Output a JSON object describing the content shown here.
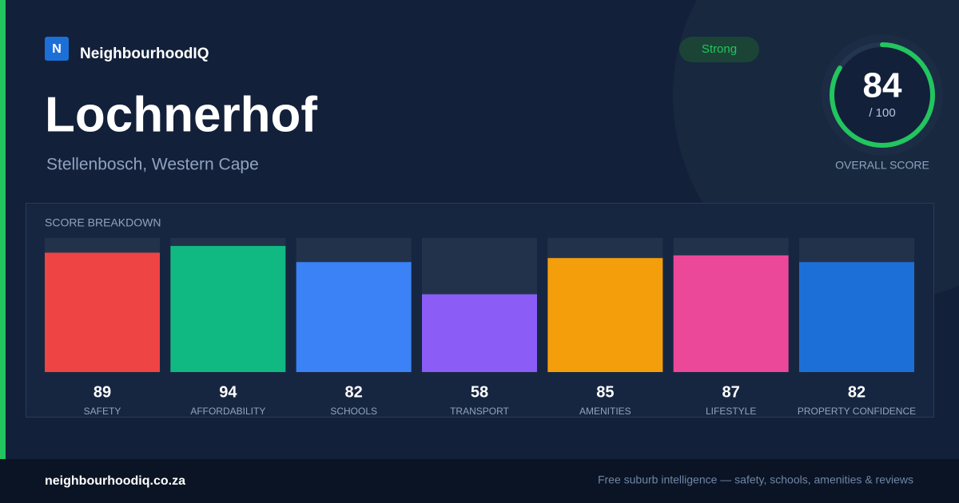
{
  "brand": {
    "logo": "N",
    "name": "NeighbourhoodIQ"
  },
  "header": {
    "title": "Lochnerhof",
    "subtitle": "Stellenbosch, Western Cape",
    "badge": "Strong"
  },
  "overall": {
    "score": 84,
    "max": {
      "value": 100,
      "label": "/ 100"
    },
    "label": "OVERALL SCORE"
  },
  "chart_data": {
    "type": "bar",
    "title": "SCORE BREAKDOWN",
    "categories": [
      "SAFETY",
      "AFFORDABILITY",
      "SCHOOLS",
      "TRANSPORT",
      "AMENITIES",
      "LIFESTYLE",
      "PROPERTY CONFIDENCE"
    ],
    "values": [
      89,
      94,
      82,
      58,
      85,
      87,
      82
    ],
    "colors": [
      "#ef4444",
      "#10b981",
      "#3b82f6",
      "#8b5cf6",
      "#f59e0b",
      "#ec4899",
      "#1d6fd8"
    ],
    "ylim": [
      0,
      100
    ]
  },
  "footer": {
    "url": "neighbourhoodiq.co.za",
    "tagline": "Free suburb intelligence — safety, schools, amenities & reviews"
  }
}
